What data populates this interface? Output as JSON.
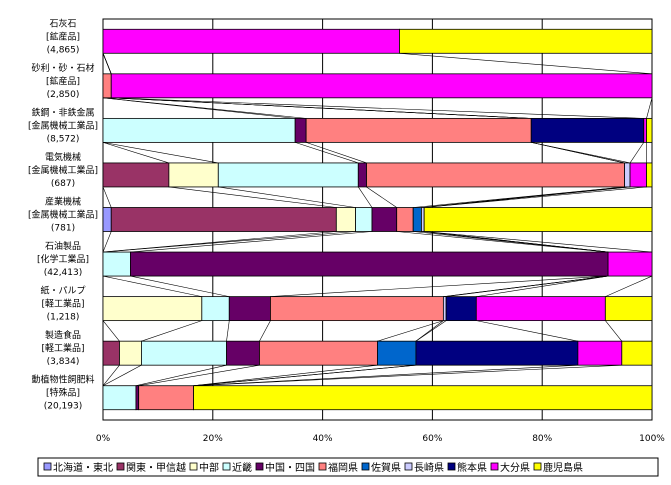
{
  "chart_data": {
    "type": "bar",
    "orientation": "horizontal",
    "stacked": "percent",
    "xlim": [
      0,
      100
    ],
    "x_ticks": [
      "0%",
      "20%",
      "40%",
      "60%",
      "80%",
      "100%"
    ],
    "grid": "vertical",
    "legend_position": "bottom",
    "categories": [
      {
        "name": "石灰石",
        "group": "[鉱産品]",
        "total": "(4,865)"
      },
      {
        "name": "砂利・砂・石材",
        "group": "[鉱産品]",
        "total": "(2,850)"
      },
      {
        "name": "鉄鋼・非鉄金属",
        "group": "[金属機械工業品]",
        "total": "(8,572)"
      },
      {
        "name": "電気機械",
        "group": "[金属機械工業品]",
        "total": "(687)"
      },
      {
        "name": "産業機械",
        "group": "[金属機械工業品]",
        "total": "(781)"
      },
      {
        "name": "石油製品",
        "group": "[化学工業品]",
        "total": "(42,413)"
      },
      {
        "name": "紙・パルプ",
        "group": "[軽工業品]",
        "total": "(1,218)"
      },
      {
        "name": "製造食品",
        "group": "[軽工業品]",
        "total": "(3,834)"
      },
      {
        "name": "動植物性飼肥料",
        "group": "[特殊品]",
        "total": "(20,193)"
      }
    ],
    "series": [
      {
        "name": "北海道・東北",
        "color": "#9999ff",
        "values": [
          0,
          0,
          0,
          0,
          1.5,
          0,
          0,
          0,
          0
        ]
      },
      {
        "name": "関東・甲信越",
        "color": "#993366",
        "values": [
          0,
          0,
          0,
          12,
          41,
          0,
          0,
          3,
          0
        ]
      },
      {
        "name": "中部",
        "color": "#ffffcc",
        "values": [
          0,
          0,
          0,
          9,
          3.5,
          0,
          18,
          4,
          0
        ]
      },
      {
        "name": "近畿",
        "color": "#ccffff",
        "values": [
          0,
          0,
          35,
          25.5,
          3,
          5,
          5,
          15.5,
          6
        ]
      },
      {
        "name": "中国・四国",
        "color": "#660066",
        "values": [
          0,
          0,
          2,
          1.5,
          4.5,
          87,
          7.5,
          6,
          0.5
        ]
      },
      {
        "name": "福岡県",
        "color": "#ff8080",
        "values": [
          0,
          1.5,
          41,
          47,
          3,
          0,
          31.5,
          21.5,
          10
        ]
      },
      {
        "name": "佐賀県",
        "color": "#0066cc",
        "values": [
          0,
          0,
          0,
          0,
          1.5,
          0,
          0,
          7,
          0
        ]
      },
      {
        "name": "長崎県",
        "color": "#ccccff",
        "values": [
          0,
          0,
          0,
          1,
          0.5,
          0,
          0.5,
          0,
          0
        ]
      },
      {
        "name": "熊本県",
        "color": "#000080",
        "values": [
          0,
          0,
          20.5,
          0,
          0,
          0,
          5.5,
          29.5,
          0
        ]
      },
      {
        "name": "大分県",
        "color": "#ff00ff",
        "values": [
          54,
          98.5,
          0.5,
          3,
          0,
          8,
          23.5,
          8,
          0
        ]
      },
      {
        "name": "鹿児島県",
        "color": "#ffff00",
        "values": [
          46,
          0,
          1,
          1,
          41.5,
          0,
          8.5,
          5.5,
          83.5
        ]
      }
    ]
  }
}
